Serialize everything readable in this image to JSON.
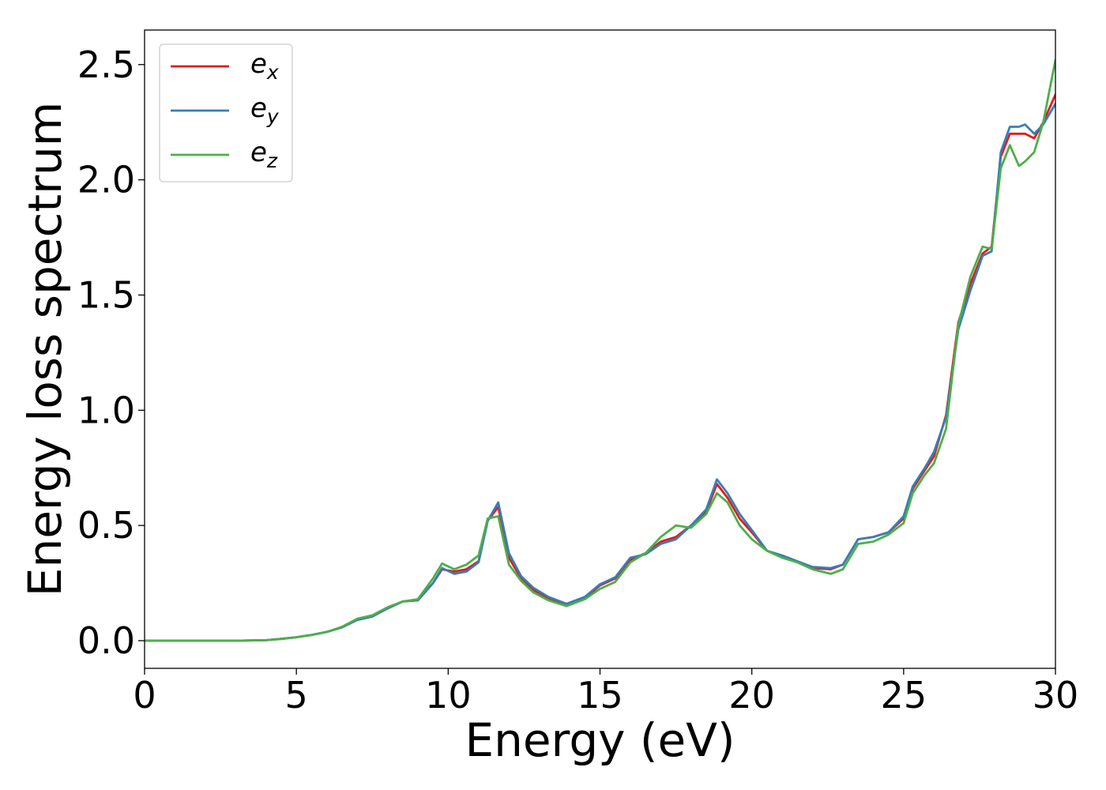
{
  "chart_data": {
    "type": "line",
    "title": "",
    "xlabel": "Energy (eV)",
    "ylabel": "Energy loss spectrum",
    "xlim": [
      0,
      30
    ],
    "ylim": [
      -0.12,
      2.65
    ],
    "xticks": [
      0,
      5,
      10,
      15,
      20,
      25,
      30
    ],
    "xtick_labels": [
      "0",
      "5",
      "10",
      "15",
      "20",
      "25",
      "30"
    ],
    "yticks": [
      0.0,
      0.5,
      1.0,
      1.5,
      2.0,
      2.5
    ],
    "ytick_labels": [
      "0.0",
      "0.5",
      "1.0",
      "1.5",
      "2.0",
      "2.5"
    ],
    "grid": false,
    "legend_position": "top-left",
    "series": [
      {
        "name": "e_x",
        "label_base": "e",
        "label_sub": "x",
        "color": "#e41a1c",
        "x": [
          0,
          1,
          2,
          3,
          4,
          4.5,
          5,
          5.5,
          6,
          6.5,
          7,
          7.5,
          8,
          8.5,
          9,
          9.5,
          9.8,
          10.2,
          10.6,
          11,
          11.3,
          11.65,
          12,
          12.4,
          12.8,
          13.3,
          13.9,
          14.5,
          15,
          15.5,
          16,
          16.5,
          17,
          17.5,
          18,
          18.5,
          18.85,
          19.2,
          19.6,
          20,
          20.5,
          21,
          21.5,
          22,
          22.6,
          23,
          23.5,
          24,
          24.5,
          25,
          25.3,
          25.7,
          26,
          26.4,
          26.8,
          27.2,
          27.6,
          27.9,
          28.2,
          28.5,
          28.8,
          29,
          29.3,
          29.6,
          30
        ],
        "y": [
          0,
          0,
          0,
          0,
          0.002,
          0.008,
          0.015,
          0.025,
          0.038,
          0.058,
          0.09,
          0.105,
          0.14,
          0.17,
          0.175,
          0.25,
          0.31,
          0.3,
          0.31,
          0.345,
          0.52,
          0.58,
          0.36,
          0.27,
          0.22,
          0.185,
          0.155,
          0.185,
          0.24,
          0.27,
          0.35,
          0.38,
          0.43,
          0.45,
          0.5,
          0.56,
          0.68,
          0.62,
          0.53,
          0.47,
          0.39,
          0.365,
          0.34,
          0.315,
          0.31,
          0.33,
          0.44,
          0.45,
          0.47,
          0.53,
          0.66,
          0.74,
          0.8,
          0.98,
          1.38,
          1.55,
          1.68,
          1.71,
          2.1,
          2.2,
          2.2,
          2.2,
          2.18,
          2.25,
          2.37
        ]
      },
      {
        "name": "e_y",
        "label_base": "e",
        "label_sub": "y",
        "color": "#377eb8",
        "x": [
          0,
          1,
          2,
          3,
          4,
          4.5,
          5,
          5.5,
          6,
          6.5,
          7,
          7.5,
          8,
          8.5,
          9,
          9.5,
          9.8,
          10.2,
          10.6,
          11,
          11.3,
          11.65,
          12,
          12.4,
          12.8,
          13.3,
          13.9,
          14.5,
          15,
          15.5,
          16,
          16.5,
          17,
          17.5,
          18,
          18.5,
          18.85,
          19.2,
          19.6,
          20,
          20.5,
          21,
          21.5,
          22,
          22.6,
          23,
          23.5,
          24,
          24.5,
          25,
          25.3,
          25.7,
          26,
          26.4,
          26.8,
          27.2,
          27.6,
          27.9,
          28.2,
          28.5,
          28.8,
          29,
          29.3,
          29.6,
          30
        ],
        "y": [
          0,
          0,
          0,
          0,
          0.002,
          0.008,
          0.015,
          0.025,
          0.038,
          0.058,
          0.09,
          0.105,
          0.14,
          0.17,
          0.175,
          0.25,
          0.315,
          0.29,
          0.3,
          0.34,
          0.52,
          0.6,
          0.38,
          0.28,
          0.23,
          0.19,
          0.16,
          0.19,
          0.245,
          0.275,
          0.36,
          0.375,
          0.42,
          0.44,
          0.5,
          0.57,
          0.7,
          0.64,
          0.55,
          0.48,
          0.39,
          0.37,
          0.345,
          0.32,
          0.315,
          0.33,
          0.44,
          0.45,
          0.47,
          0.54,
          0.67,
          0.75,
          0.82,
          0.97,
          1.35,
          1.52,
          1.67,
          1.69,
          2.12,
          2.23,
          2.23,
          2.24,
          2.2,
          2.24,
          2.33
        ]
      },
      {
        "name": "e_z",
        "label_base": "e",
        "label_sub": "z",
        "color": "#4daf4a",
        "x": [
          0,
          1,
          2,
          3,
          4,
          4.5,
          5,
          5.5,
          6,
          6.5,
          7,
          7.5,
          8,
          8.5,
          9,
          9.5,
          9.8,
          10.2,
          10.6,
          11,
          11.3,
          11.65,
          12,
          12.4,
          12.8,
          13.3,
          13.9,
          14.5,
          15,
          15.5,
          16,
          16.5,
          17,
          17.5,
          18,
          18.5,
          18.85,
          19.2,
          19.6,
          20,
          20.5,
          21,
          21.5,
          22,
          22.6,
          23,
          23.5,
          24,
          24.5,
          25,
          25.3,
          25.7,
          26,
          26.4,
          26.8,
          27.2,
          27.6,
          27.9,
          28.2,
          28.5,
          28.8,
          29,
          29.3,
          29.6,
          30
        ],
        "y": [
          0,
          0,
          0,
          0,
          0.002,
          0.008,
          0.015,
          0.025,
          0.038,
          0.06,
          0.095,
          0.11,
          0.145,
          0.17,
          0.18,
          0.27,
          0.335,
          0.31,
          0.33,
          0.37,
          0.53,
          0.54,
          0.33,
          0.26,
          0.21,
          0.175,
          0.15,
          0.18,
          0.225,
          0.255,
          0.34,
          0.38,
          0.45,
          0.5,
          0.49,
          0.55,
          0.64,
          0.6,
          0.5,
          0.44,
          0.39,
          0.36,
          0.34,
          0.31,
          0.29,
          0.31,
          0.42,
          0.43,
          0.46,
          0.51,
          0.64,
          0.72,
          0.77,
          0.92,
          1.37,
          1.58,
          1.71,
          1.7,
          2.05,
          2.15,
          2.06,
          2.08,
          2.12,
          2.25,
          2.52
        ]
      }
    ]
  }
}
